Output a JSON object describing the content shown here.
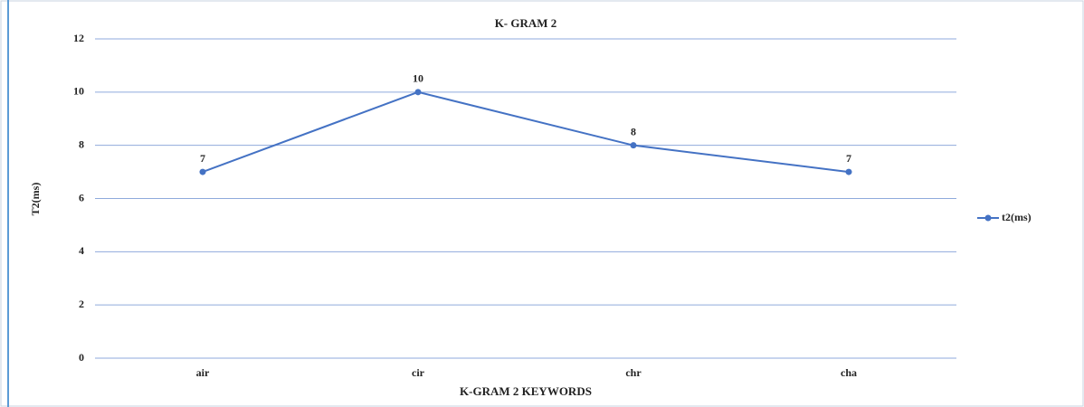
{
  "chart_data": {
    "type": "line",
    "title": "K- GRAM 2",
    "x_label": "K-GRAM 2  KEYWORDS",
    "y_label": "T2(ms)",
    "categories": [
      "air",
      "cir",
      "chr",
      "cha"
    ],
    "series": [
      {
        "name": "t2(ms)",
        "color": "#4472c4",
        "values": [
          7,
          10,
          8,
          7
        ]
      }
    ],
    "ylim": [
      0,
      12
    ],
    "yticks": [
      0,
      2,
      4,
      6,
      8,
      10,
      12
    ],
    "grid": true,
    "legend": "right",
    "data_labels": true
  }
}
